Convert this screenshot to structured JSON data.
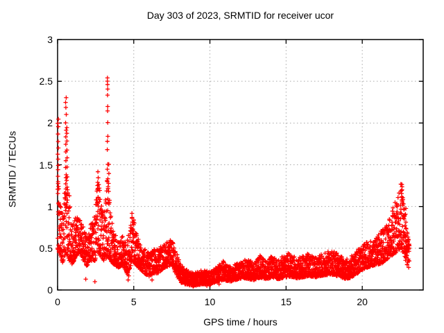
{
  "chart_data": {
    "type": "scatter",
    "title": "Day 303 of 2023, SRMTID for receiver ucor",
    "xlabel": "GPS time / hours",
    "ylabel": "SRMTID / TECUs",
    "xlim": [
      0,
      24
    ],
    "ylim": [
      0,
      3
    ],
    "xticks": [
      0,
      5,
      10,
      15,
      20
    ],
    "xtick_labels": [
      "0",
      "5",
      "10",
      "15",
      "20"
    ],
    "yticks": [
      0,
      0.5,
      1,
      1.5,
      2,
      2.5,
      3
    ],
    "ytick_labels": [
      "0",
      "0.5",
      "1",
      "1.5",
      "2",
      "2.5",
      "3"
    ],
    "grid": true,
    "grid_style": "dotted",
    "grid_color": "#a8a8a8",
    "frame_color": "#000000",
    "legend_position": "none",
    "marker": "plus",
    "marker_color": "#ff0000",
    "series_name": "SRMTID",
    "sampling_hours": 0.0066667,
    "x_data_range": [
      0,
      23.1
    ],
    "band_envelope": [
      [
        0.0,
        0.5,
        1.6
      ],
      [
        0.15,
        0.4,
        1.05
      ],
      [
        0.35,
        0.32,
        0.9
      ],
      [
        0.55,
        0.45,
        1.45
      ],
      [
        0.75,
        0.35,
        1.2
      ],
      [
        0.95,
        0.3,
        0.8
      ],
      [
        1.2,
        0.4,
        0.9
      ],
      [
        1.45,
        0.45,
        0.85
      ],
      [
        1.7,
        0.35,
        0.75
      ],
      [
        1.95,
        0.28,
        0.7
      ],
      [
        2.2,
        0.35,
        0.8
      ],
      [
        2.45,
        0.35,
        0.9
      ],
      [
        2.65,
        0.45,
        1.35
      ],
      [
        2.85,
        0.4,
        1.1
      ],
      [
        3.05,
        0.35,
        0.85
      ],
      [
        3.3,
        0.4,
        1.45
      ],
      [
        3.5,
        0.35,
        0.9
      ],
      [
        3.7,
        0.3,
        0.7
      ],
      [
        4.0,
        0.27,
        0.6
      ],
      [
        4.3,
        0.3,
        0.65
      ],
      [
        4.6,
        0.18,
        0.6
      ],
      [
        4.9,
        0.35,
        0.95
      ],
      [
        5.15,
        0.3,
        0.7
      ],
      [
        5.4,
        0.25,
        0.55
      ],
      [
        5.7,
        0.2,
        0.5
      ],
      [
        6.0,
        0.16,
        0.45
      ],
      [
        6.3,
        0.2,
        0.5
      ],
      [
        6.6,
        0.2,
        0.48
      ],
      [
        6.9,
        0.25,
        0.55
      ],
      [
        7.2,
        0.28,
        0.58
      ],
      [
        7.5,
        0.3,
        0.6
      ],
      [
        7.8,
        0.18,
        0.45
      ],
      [
        8.1,
        0.09,
        0.3
      ],
      [
        8.5,
        0.06,
        0.25
      ],
      [
        9.0,
        0.05,
        0.21
      ],
      [
        9.5,
        0.07,
        0.24
      ],
      [
        10.0,
        0.06,
        0.22
      ],
      [
        10.4,
        0.1,
        0.27
      ],
      [
        10.9,
        0.12,
        0.35
      ],
      [
        11.3,
        0.1,
        0.28
      ],
      [
        11.7,
        0.12,
        0.31
      ],
      [
        12.1,
        0.14,
        0.34
      ],
      [
        12.5,
        0.13,
        0.38
      ],
      [
        12.9,
        0.12,
        0.31
      ],
      [
        13.3,
        0.15,
        0.42
      ],
      [
        13.7,
        0.13,
        0.34
      ],
      [
        14.1,
        0.15,
        0.42
      ],
      [
        14.5,
        0.13,
        0.36
      ],
      [
        14.9,
        0.15,
        0.43
      ],
      [
        15.3,
        0.16,
        0.45
      ],
      [
        15.7,
        0.14,
        0.37
      ],
      [
        16.1,
        0.15,
        0.41
      ],
      [
        16.5,
        0.17,
        0.44
      ],
      [
        16.9,
        0.15,
        0.39
      ],
      [
        17.3,
        0.17,
        0.43
      ],
      [
        17.7,
        0.18,
        0.46
      ],
      [
        18.1,
        0.18,
        0.48
      ],
      [
        18.5,
        0.16,
        0.42
      ],
      [
        18.9,
        0.13,
        0.36
      ],
      [
        19.3,
        0.15,
        0.41
      ],
      [
        19.7,
        0.2,
        0.48
      ],
      [
        20.1,
        0.25,
        0.55
      ],
      [
        20.5,
        0.28,
        0.6
      ],
      [
        20.9,
        0.3,
        0.63
      ],
      [
        21.3,
        0.32,
        0.72
      ],
      [
        21.7,
        0.38,
        0.85
      ],
      [
        22.0,
        0.42,
        1.0
      ],
      [
        22.3,
        0.45,
        1.12
      ],
      [
        22.55,
        0.5,
        1.28
      ],
      [
        22.75,
        0.4,
        1.05
      ],
      [
        22.95,
        0.3,
        0.7
      ],
      [
        23.1,
        0.25,
        0.55
      ]
    ],
    "spike_columns": [
      {
        "h": 0.03,
        "values": [
          2.05,
          2.0,
          1.95,
          1.86,
          1.78,
          1.7,
          1.63,
          1.56,
          1.5,
          1.44,
          1.37,
          1.3
        ]
      },
      {
        "h": 0.55,
        "values": [
          2.3,
          2.24,
          2.18,
          2.1,
          2.0,
          1.92,
          1.84,
          1.75,
          1.65,
          1.55,
          1.47,
          1.38,
          1.28
        ]
      },
      {
        "h": 0.63,
        "values": [
          1.95,
          1.88,
          1.78,
          1.68,
          1.58,
          1.48,
          1.35,
          1.24,
          1.14
        ]
      },
      {
        "h": 2.65,
        "values": [
          1.42,
          1.35,
          1.28,
          1.2,
          1.12,
          1.05,
          1.0
        ]
      },
      {
        "h": 3.28,
        "values": [
          2.55,
          2.5,
          2.46,
          2.4,
          2.33,
          2.2,
          2.15,
          2.0,
          1.85,
          1.78,
          1.68,
          1.5,
          1.44,
          1.3,
          1.1,
          0.95
        ]
      },
      {
        "h": 3.36,
        "values": [
          1.5,
          1.4,
          1.28,
          1.18,
          1.05
        ]
      },
      {
        "h": 4.9,
        "values": [
          0.92,
          0.87,
          0.82
        ]
      },
      {
        "h": 7.4,
        "values": [
          0.6,
          0.57
        ]
      },
      {
        "h": 22.6,
        "values": [
          1.27,
          1.24,
          1.2,
          1.16,
          1.12,
          1.07
        ]
      },
      {
        "h": 22.85,
        "values": [
          0.97,
          0.9,
          0.82,
          0.74,
          0.66,
          0.57,
          0.47,
          0.38
        ]
      }
    ],
    "outliers": [
      [
        1.85,
        0.13
      ],
      [
        2.45,
        0.1
      ],
      [
        4.63,
        0.12
      ],
      [
        4.67,
        0.17
      ],
      [
        8.9,
        0.04
      ],
      [
        9.8,
        0.05
      ],
      [
        6.2,
        0.12
      ],
      [
        10.6,
        0.07
      ]
    ]
  }
}
